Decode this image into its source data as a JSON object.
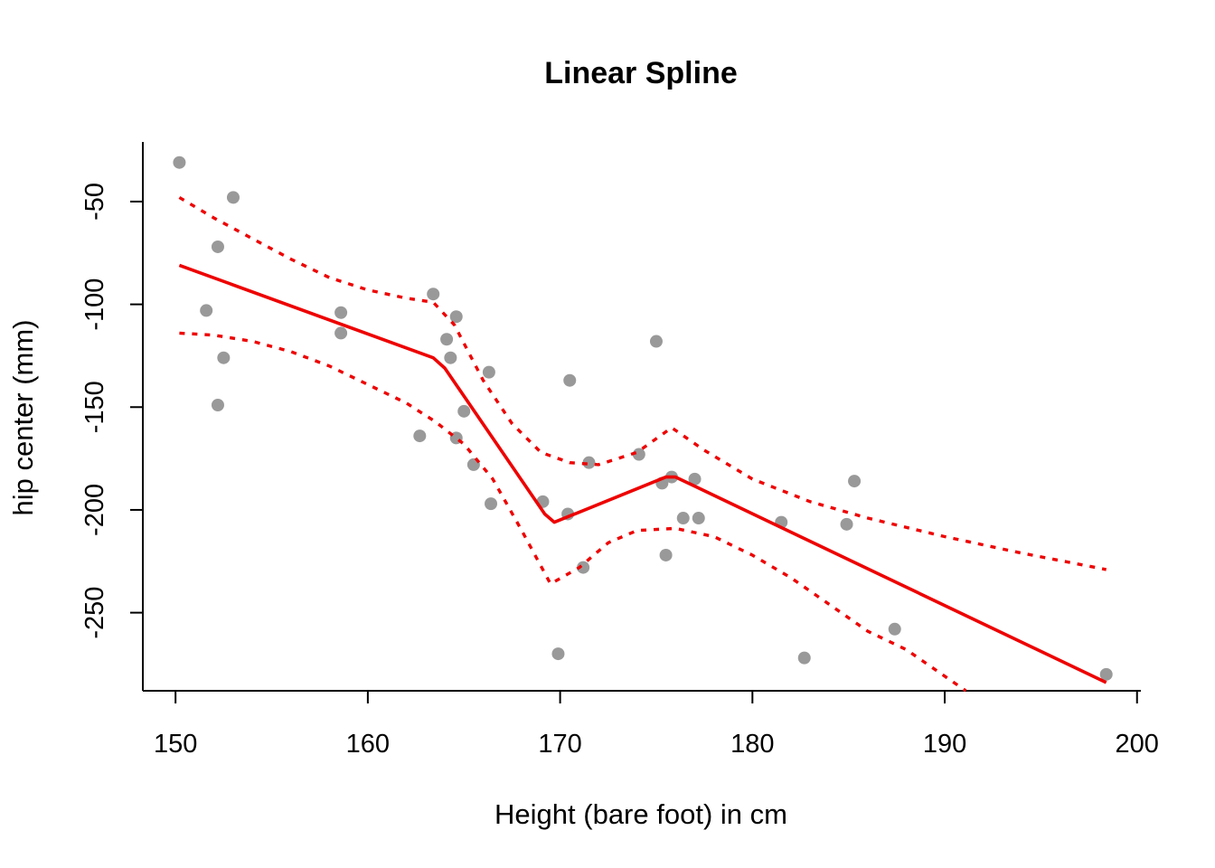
{
  "chart_data": {
    "type": "scatter",
    "title": "Linear Spline",
    "xlabel": "Height (bare foot) in cm",
    "ylabel": "hip center (mm)",
    "xlim": [
      148.3,
      200.2
    ],
    "ylim": [
      -288,
      -21
    ],
    "xticks": [
      150,
      160,
      170,
      180,
      190,
      200
    ],
    "yticks": [
      -50,
      -100,
      -150,
      -200,
      -250
    ],
    "grid": false,
    "colors": {
      "points": "#999999",
      "fit": "#ee0000",
      "ci": "#ee0000",
      "axis": "#000000"
    },
    "points": [
      [
        150.2,
        -31
      ],
      [
        151.6,
        -103
      ],
      [
        152.2,
        -72
      ],
      [
        152.2,
        -149
      ],
      [
        152.5,
        -126
      ],
      [
        153.0,
        -48
      ],
      [
        158.6,
        -104
      ],
      [
        158.6,
        -114
      ],
      [
        162.7,
        -164
      ],
      [
        163.4,
        -95
      ],
      [
        164.1,
        -117
      ],
      [
        164.3,
        -126
      ],
      [
        164.6,
        -106
      ],
      [
        164.6,
        -165
      ],
      [
        165.0,
        -152
      ],
      [
        165.5,
        -178
      ],
      [
        166.3,
        -133
      ],
      [
        166.4,
        -197
      ],
      [
        169.1,
        -196
      ],
      [
        169.9,
        -270
      ],
      [
        170.4,
        -202
      ],
      [
        170.5,
        -137
      ],
      [
        171.2,
        -228
      ],
      [
        171.5,
        -177
      ],
      [
        174.1,
        -173
      ],
      [
        175.0,
        -118
      ],
      [
        175.3,
        -187
      ],
      [
        175.5,
        -222
      ],
      [
        175.8,
        -184
      ],
      [
        176.4,
        -204
      ],
      [
        177.0,
        -185
      ],
      [
        177.2,
        -204
      ],
      [
        181.5,
        -206
      ],
      [
        182.7,
        -272
      ],
      [
        184.9,
        -207
      ],
      [
        185.3,
        -186
      ],
      [
        187.4,
        -258
      ],
      [
        198.4,
        -280
      ]
    ],
    "fit": [
      [
        150.2,
        -81
      ],
      [
        163.4,
        -126
      ],
      [
        164.0,
        -131
      ],
      [
        169.2,
        -202
      ],
      [
        169.7,
        -206
      ],
      [
        175.5,
        -184
      ],
      [
        176.0,
        -184
      ],
      [
        198.4,
        -284
      ]
    ],
    "ci_upper": [
      [
        150.2,
        -48
      ],
      [
        152.0,
        -58
      ],
      [
        154.0,
        -68
      ],
      [
        156.0,
        -78
      ],
      [
        158.0,
        -87
      ],
      [
        160.0,
        -93
      ],
      [
        162.0,
        -97
      ],
      [
        163.4,
        -99
      ],
      [
        164.5,
        -110
      ],
      [
        166.0,
        -137
      ],
      [
        167.5,
        -158
      ],
      [
        169.0,
        -172
      ],
      [
        170.5,
        -177
      ],
      [
        172.0,
        -178
      ],
      [
        174.0,
        -172
      ],
      [
        175.8,
        -160
      ],
      [
        177.5,
        -171
      ],
      [
        180.0,
        -185
      ],
      [
        183.0,
        -196
      ],
      [
        186.0,
        -204
      ],
      [
        190.0,
        -213
      ],
      [
        194.0,
        -221
      ],
      [
        198.4,
        -229
      ]
    ],
    "ci_lower": [
      [
        150.2,
        -114
      ],
      [
        152.0,
        -115
      ],
      [
        154.0,
        -118
      ],
      [
        156.0,
        -123
      ],
      [
        158.0,
        -130
      ],
      [
        160.0,
        -139
      ],
      [
        162.0,
        -148
      ],
      [
        163.5,
        -157
      ],
      [
        165.0,
        -168
      ],
      [
        166.5,
        -185
      ],
      [
        168.0,
        -210
      ],
      [
        169.5,
        -236
      ],
      [
        171.0,
        -228
      ],
      [
        172.5,
        -216
      ],
      [
        174.0,
        -210
      ],
      [
        176.0,
        -209
      ],
      [
        178.0,
        -213
      ],
      [
        180.0,
        -222
      ],
      [
        182.0,
        -233
      ],
      [
        184.0,
        -246
      ],
      [
        186.0,
        -259
      ],
      [
        188.0,
        -268
      ],
      [
        191.1,
        -288
      ]
    ]
  }
}
